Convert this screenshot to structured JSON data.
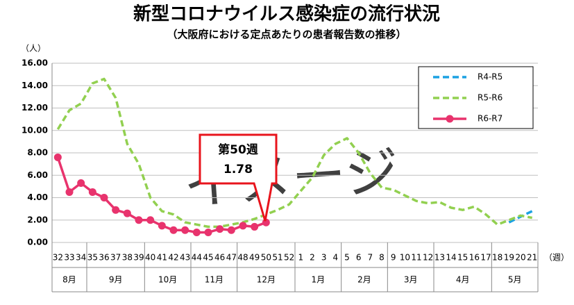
{
  "chart_data": {
    "type": "line",
    "title": "新型コロナウイルス感染症の流行状況",
    "subtitle": "（大阪府における定点あたりの患者報告数の推移）",
    "y_unit": "（人）",
    "x_unit": "（週）",
    "watermark": "イメージ",
    "annotation": {
      "lines": [
        "第50週",
        "1.78"
      ],
      "series": 2,
      "index": 18
    },
    "categories": [
      "32",
      "33",
      "34",
      "35",
      "36",
      "37",
      "38",
      "39",
      "40",
      "41",
      "42",
      "43",
      "44",
      "45",
      "46",
      "47",
      "48",
      "49",
      "50",
      "51",
      "52",
      "1",
      "2",
      "3",
      "4",
      "5",
      "6",
      "7",
      "8",
      "9",
      "10",
      "11",
      "12",
      "13",
      "14",
      "15",
      "16",
      "17",
      "18",
      "19",
      "20",
      "21"
    ],
    "x_groups": [
      {
        "label": "8月",
        "span": 3
      },
      {
        "label": "9月",
        "span": 5
      },
      {
        "label": "10月",
        "span": 4
      },
      {
        "label": "11月",
        "span": 4
      },
      {
        "label": "12月",
        "span": 5
      },
      {
        "label": "1月",
        "span": 4
      },
      {
        "label": "2月",
        "span": 4
      },
      {
        "label": "3月",
        "span": 4
      },
      {
        "label": "4月",
        "span": 5
      },
      {
        "label": "5月",
        "span": 4
      }
    ],
    "ylim": [
      0,
      16
    ],
    "yticks": [
      {
        "value": 0,
        "label": "0.00"
      },
      {
        "value": 2,
        "label": "2.00"
      },
      {
        "value": 4,
        "label": "4.00"
      },
      {
        "value": 6,
        "label": "6.00"
      },
      {
        "value": 8,
        "label": "8.00"
      },
      {
        "value": 10,
        "label": "10.00"
      },
      {
        "value": 12,
        "label": "12.00"
      },
      {
        "value": 14,
        "label": "14.00"
      },
      {
        "value": 16,
        "label": "16.00"
      }
    ],
    "grid": true,
    "legend": "upper right",
    "series": [
      {
        "name": "R4-R5",
        "color": "#1ba1e2",
        "dashed": true,
        "markers": false,
        "values": [
          null,
          null,
          null,
          null,
          null,
          null,
          null,
          null,
          null,
          null,
          null,
          null,
          null,
          null,
          null,
          null,
          null,
          null,
          null,
          null,
          null,
          null,
          null,
          null,
          null,
          null,
          null,
          null,
          null,
          null,
          null,
          null,
          null,
          null,
          null,
          null,
          null,
          null,
          null,
          1.8,
          2.3,
          2.8
        ]
      },
      {
        "name": "R5-R6",
        "color": "#92d050",
        "dashed": true,
        "markers": false,
        "values": [
          10.1,
          11.8,
          12.4,
          14.2,
          14.6,
          12.9,
          8.8,
          7.0,
          4.0,
          2.8,
          2.5,
          1.8,
          1.6,
          1.4,
          1.4,
          1.6,
          1.8,
          2.1,
          2.5,
          2.9,
          3.4,
          4.6,
          5.8,
          7.8,
          8.8,
          9.3,
          8.0,
          6.2,
          4.9,
          4.7,
          4.2,
          3.7,
          3.5,
          3.6,
          3.1,
          2.9,
          3.2,
          2.5,
          1.6,
          2.0,
          2.4,
          2.2
        ]
      },
      {
        "name": "R6-R7",
        "color": "#e8336d",
        "dashed": false,
        "markers": true,
        "values": [
          7.6,
          4.5,
          5.3,
          4.5,
          4.0,
          2.9,
          2.6,
          2.0,
          2.0,
          1.5,
          1.1,
          1.1,
          0.9,
          0.9,
          1.2,
          1.1,
          1.5,
          1.4,
          1.78,
          null,
          null,
          null,
          null,
          null,
          null,
          null,
          null,
          null,
          null,
          null,
          null,
          null,
          null,
          null,
          null,
          null,
          null,
          null,
          null,
          null,
          null,
          null
        ]
      }
    ]
  }
}
